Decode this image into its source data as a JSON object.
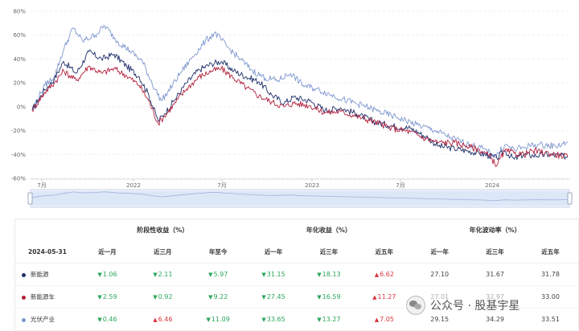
{
  "chart_data": {
    "type": "line",
    "yaxis": {
      "ticks": [
        "80%",
        "60%",
        "40%",
        "20%",
        "0%",
        "-20%",
        "-40%",
        "-60%"
      ],
      "ylim": [
        -60,
        80
      ]
    },
    "xaxis": {
      "ticks": [
        "7月",
        "2022",
        "7月",
        "2023",
        "7月",
        "2024"
      ]
    },
    "grid": true,
    "series": [
      {
        "name": "新能源",
        "color": "#1f2f6b",
        "values": [
          [
            0,
            -3
          ],
          [
            8,
            14
          ],
          [
            14,
            23
          ],
          [
            20,
            38
          ],
          [
            28,
            28
          ],
          [
            36,
            46
          ],
          [
            44,
            40
          ],
          [
            52,
            44
          ],
          [
            60,
            34
          ],
          [
            68,
            25
          ],
          [
            74,
            10
          ],
          [
            80,
            -12
          ],
          [
            84,
            -6
          ],
          [
            90,
            5
          ],
          [
            98,
            20
          ],
          [
            106,
            31
          ],
          [
            114,
            36
          ],
          [
            120,
            38
          ],
          [
            128,
            30
          ],
          [
            136,
            25
          ],
          [
            144,
            21
          ],
          [
            152,
            10
          ],
          [
            160,
            3
          ],
          [
            166,
            8
          ],
          [
            176,
            5
          ],
          [
            186,
            -3
          ],
          [
            196,
            -1
          ],
          [
            206,
            -6
          ],
          [
            218,
            -13
          ],
          [
            228,
            -16
          ],
          [
            240,
            -18
          ],
          [
            250,
            -25
          ],
          [
            258,
            -33
          ],
          [
            268,
            -35
          ],
          [
            276,
            -37
          ],
          [
            284,
            -39
          ],
          [
            290,
            -41
          ],
          [
            295,
            -43
          ],
          [
            300,
            -37
          ],
          [
            306,
            -44
          ],
          [
            312,
            -40
          ],
          [
            318,
            -41
          ],
          [
            328,
            -40
          ],
          [
            340,
            -42
          ]
        ]
      },
      {
        "name": "新能源车",
        "color": "#b3213d",
        "values": [
          [
            0,
            -3
          ],
          [
            8,
            12
          ],
          [
            14,
            20
          ],
          [
            20,
            30
          ],
          [
            28,
            22
          ],
          [
            36,
            34
          ],
          [
            44,
            28
          ],
          [
            52,
            32
          ],
          [
            60,
            26
          ],
          [
            68,
            18
          ],
          [
            74,
            5
          ],
          [
            80,
            -14
          ],
          [
            84,
            -8
          ],
          [
            90,
            2
          ],
          [
            98,
            15
          ],
          [
            106,
            25
          ],
          [
            114,
            30
          ],
          [
            120,
            32
          ],
          [
            128,
            24
          ],
          [
            136,
            16
          ],
          [
            144,
            9
          ],
          [
            152,
            4
          ],
          [
            160,
            0
          ],
          [
            166,
            3
          ],
          [
            176,
            1
          ],
          [
            186,
            -5
          ],
          [
            196,
            -4
          ],
          [
            206,
            -8
          ],
          [
            218,
            -13
          ],
          [
            228,
            -18
          ],
          [
            240,
            -21
          ],
          [
            250,
            -27
          ],
          [
            258,
            -30
          ],
          [
            268,
            -30
          ],
          [
            276,
            -33
          ],
          [
            284,
            -36
          ],
          [
            290,
            -41
          ],
          [
            295,
            -49
          ],
          [
            300,
            -37
          ],
          [
            306,
            -39
          ],
          [
            312,
            -40
          ],
          [
            318,
            -37
          ],
          [
            328,
            -39
          ],
          [
            340,
            -42
          ]
        ]
      },
      {
        "name": "光伏产业",
        "color": "#7f97cf",
        "values": [
          [
            0,
            -2
          ],
          [
            8,
            18
          ],
          [
            14,
            25
          ],
          [
            20,
            48
          ],
          [
            26,
            66
          ],
          [
            32,
            55
          ],
          [
            40,
            60
          ],
          [
            46,
            68
          ],
          [
            54,
            55
          ],
          [
            62,
            47
          ],
          [
            70,
            38
          ],
          [
            76,
            20
          ],
          [
            82,
            5
          ],
          [
            86,
            12
          ],
          [
            94,
            28
          ],
          [
            102,
            42
          ],
          [
            110,
            55
          ],
          [
            116,
            62
          ],
          [
            124,
            50
          ],
          [
            132,
            40
          ],
          [
            140,
            30
          ],
          [
            148,
            24
          ],
          [
            156,
            22
          ],
          [
            164,
            28
          ],
          [
            172,
            18
          ],
          [
            180,
            15
          ],
          [
            190,
            10
          ],
          [
            200,
            5
          ],
          [
            210,
            1
          ],
          [
            220,
            -4
          ],
          [
            232,
            -9
          ],
          [
            244,
            -15
          ],
          [
            256,
            -20
          ],
          [
            266,
            -26
          ],
          [
            276,
            -31
          ],
          [
            286,
            -35
          ],
          [
            294,
            -42
          ],
          [
            300,
            -32
          ],
          [
            306,
            -36
          ],
          [
            312,
            -34
          ],
          [
            318,
            -32
          ],
          [
            324,
            -32
          ],
          [
            332,
            -33
          ],
          [
            340,
            -30
          ]
        ]
      }
    ]
  },
  "table": {
    "group_headers": [
      "阶段性收益（%）",
      "年化收益（%）",
      "年化波动率（%）"
    ],
    "date": "2024-05-31",
    "columns": [
      "近一月",
      "近三月",
      "年至今",
      "近一年",
      "近三年",
      "近五年",
      "近一年",
      "近三年",
      "近五年"
    ],
    "rows": [
      {
        "name": "新能源",
        "color": "#1f2f6b",
        "cells": [
          {
            "v": "1.06",
            "d": "down"
          },
          {
            "v": "2.11",
            "d": "down"
          },
          {
            "v": "5.97",
            "d": "down"
          },
          {
            "v": "31.15",
            "d": "down"
          },
          {
            "v": "18.13",
            "d": "down"
          },
          {
            "v": "6.62",
            "d": "up"
          },
          {
            "v": "27.10",
            "d": ""
          },
          {
            "v": "31.67",
            "d": ""
          },
          {
            "v": "31.78",
            "d": ""
          }
        ]
      },
      {
        "name": "新能源车",
        "color": "#b3213d",
        "cells": [
          {
            "v": "2.59",
            "d": "down"
          },
          {
            "v": "0.92",
            "d": "down"
          },
          {
            "v": "9.22",
            "d": "down"
          },
          {
            "v": "27.45",
            "d": "down"
          },
          {
            "v": "16.59",
            "d": "down"
          },
          {
            "v": "11.27",
            "d": "up"
          },
          {
            "v": "27.01",
            "d": ""
          },
          {
            "v": "32.97",
            "d": ""
          },
          {
            "v": "33.00",
            "d": ""
          }
        ]
      },
      {
        "name": "光伏产业",
        "color": "#7f97cf",
        "cells": [
          {
            "v": "0.46",
            "d": "down"
          },
          {
            "v": "6.46",
            "d": "up"
          },
          {
            "v": "11.09",
            "d": "down"
          },
          {
            "v": "33.65",
            "d": "down"
          },
          {
            "v": "13.27",
            "d": "down"
          },
          {
            "v": "7.05",
            "d": "up"
          },
          {
            "v": "29.15",
            "d": ""
          },
          {
            "v": "34.29",
            "d": ""
          },
          {
            "v": "33.51",
            "d": ""
          }
        ]
      }
    ]
  },
  "watermark": {
    "text": "公众号 · 股基宇星",
    "icon": "wechat-icon"
  }
}
